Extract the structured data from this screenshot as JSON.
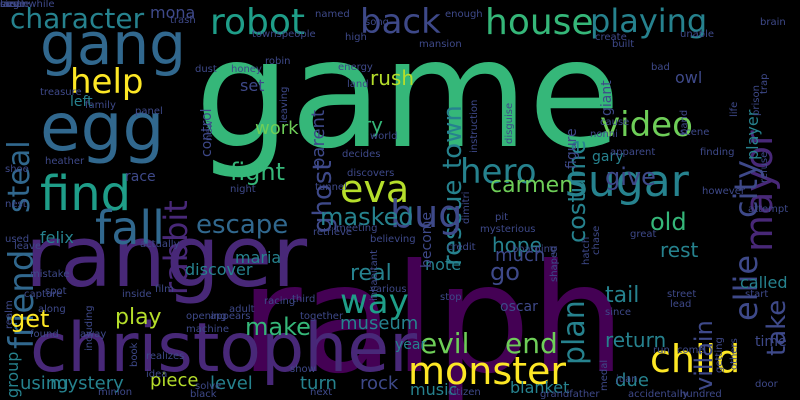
{
  "colors": {
    "background": "#000000",
    "palette": [
      "#440154",
      "#482878",
      "#3e4989",
      "#31688e",
      "#26828e",
      "#1f9e89",
      "#35b779",
      "#6ece58",
      "#b5de2b",
      "#fde725"
    ]
  },
  "words": [
    {
      "text": "game",
      "color": "#35b779"
    },
    {
      "text": "ralph",
      "color": "#440154"
    },
    {
      "text": "ranger",
      "color": "#482878"
    },
    {
      "text": "christopher",
      "color": "#482878"
    },
    {
      "text": "gang",
      "color": "#31688e"
    },
    {
      "text": "egg",
      "color": "#31688e"
    },
    {
      "text": "find",
      "color": "#1f9e89"
    },
    {
      "text": "fall",
      "color": "#31688e"
    },
    {
      "text": "friend",
      "color": "#31688e"
    },
    {
      "text": "steal",
      "color": "#31688e"
    },
    {
      "text": "help",
      "color": "#fde725"
    },
    {
      "text": "robot",
      "color": "#1f9e89"
    },
    {
      "text": "back",
      "color": "#3e4989"
    },
    {
      "text": "house",
      "color": "#35b779"
    },
    {
      "text": "playing",
      "color": "#26828e"
    },
    {
      "text": "character",
      "color": "#26828e"
    },
    {
      "text": "mona",
      "color": "#3e4989"
    },
    {
      "text": "mayor",
      "color": "#482878"
    },
    {
      "text": "ellie",
      "color": "#3e4989"
    },
    {
      "text": "city",
      "color": "#3e4989"
    },
    {
      "text": "sugar",
      "color": "#26828e"
    },
    {
      "text": "eva",
      "color": "#b5de2b"
    },
    {
      "text": "rabbit",
      "color": "#482878"
    },
    {
      "text": "ghost",
      "color": "#3e4989"
    },
    {
      "text": "rescue",
      "color": "#26828e"
    },
    {
      "text": "town",
      "color": "#26828e"
    },
    {
      "text": "video",
      "color": "#6ece58"
    },
    {
      "text": "costume",
      "color": "#26828e"
    },
    {
      "text": "bug",
      "color": "#3e4989"
    },
    {
      "text": "hero",
      "color": "#26828e"
    },
    {
      "text": "carmen",
      "color": "#6ece58"
    },
    {
      "text": "plan",
      "color": "#26828e"
    },
    {
      "text": "give",
      "color": "#3e4989"
    },
    {
      "text": "masked",
      "color": "#26828e"
    },
    {
      "text": "escape",
      "color": "#31688e"
    },
    {
      "text": "fight",
      "color": "#35b779"
    },
    {
      "text": "work",
      "color": "#6ece58"
    },
    {
      "text": "try",
      "color": "#35b779"
    },
    {
      "text": "rush",
      "color": "#b5de2b"
    },
    {
      "text": "set",
      "color": "#3e4989"
    },
    {
      "text": "parent",
      "color": "#3e4989"
    },
    {
      "text": "way",
      "color": "#1f9e89"
    },
    {
      "text": "real",
      "color": "#26828e"
    },
    {
      "text": "go",
      "color": "#3e4989"
    },
    {
      "text": "monster",
      "color": "#fde725"
    },
    {
      "text": "child",
      "color": "#fde725"
    },
    {
      "text": "evil",
      "color": "#6ece58"
    },
    {
      "text": "end",
      "color": "#6ece58"
    },
    {
      "text": "make",
      "color": "#35b779"
    },
    {
      "text": "museum",
      "color": "#26828e"
    },
    {
      "text": "get",
      "color": "#fde725"
    },
    {
      "text": "play",
      "color": "#b5de2b"
    },
    {
      "text": "felix",
      "color": "#26828e"
    },
    {
      "text": "discover",
      "color": "#26828e"
    },
    {
      "text": "maria",
      "color": "#26828e"
    },
    {
      "text": "old",
      "color": "#35b779"
    },
    {
      "text": "rest",
      "color": "#26828e"
    },
    {
      "text": "hope",
      "color": "#26828e"
    },
    {
      "text": "take",
      "color": "#3e4989"
    },
    {
      "text": "villain",
      "color": "#3e4989"
    },
    {
      "text": "tail",
      "color": "#26828e"
    },
    {
      "text": "note",
      "color": "#26828e"
    },
    {
      "text": "much",
      "color": "#3e4989"
    },
    {
      "text": "return",
      "color": "#26828e"
    },
    {
      "text": "mystery",
      "color": "#26828e"
    },
    {
      "text": "piece",
      "color": "#b5de2b"
    },
    {
      "text": "level",
      "color": "#26828e"
    },
    {
      "text": "turn",
      "color": "#26828e"
    },
    {
      "text": "rock",
      "color": "#3e4989"
    },
    {
      "text": "music",
      "color": "#26828e"
    },
    {
      "text": "blanket",
      "color": "#26828e"
    },
    {
      "text": "due",
      "color": "#26828e"
    },
    {
      "text": "using",
      "color": "#26828e"
    },
    {
      "text": "group",
      "color": "#26828e"
    },
    {
      "text": "called",
      "color": "#26828e"
    },
    {
      "text": "gary",
      "color": "#26828e"
    },
    {
      "text": "owl",
      "color": "#3e4989"
    },
    {
      "text": "player",
      "color": "#26828e"
    },
    {
      "text": "left",
      "color": "#26828e"
    },
    {
      "text": "control",
      "color": "#3e4989"
    },
    {
      "text": "become",
      "color": "#3e4989"
    },
    {
      "text": "figure",
      "color": "#3e4989"
    },
    {
      "text": "giant",
      "color": "#3e4989"
    },
    {
      "text": "oscar",
      "color": "#3e4989"
    },
    {
      "text": "year",
      "color": "#26828e"
    },
    {
      "text": "time",
      "color": "#3e4989"
    },
    {
      "text": "race",
      "color": "#3e4989"
    },
    {
      "text": "trash",
      "color": "#3e4989"
    },
    {
      "text": "dust",
      "color": "#3e4989"
    },
    {
      "text": "named",
      "color": "#3e4989"
    },
    {
      "text": "robin",
      "color": "#3e4989"
    },
    {
      "text": "high",
      "color": "#3e4989"
    },
    {
      "text": "enough",
      "color": "#3e4989"
    },
    {
      "text": "create",
      "color": "#3e4989"
    },
    {
      "text": "built",
      "color": "#3e4989"
    },
    {
      "text": "unable",
      "color": "#3e4989"
    },
    {
      "text": "brain",
      "color": "#3e4989"
    },
    {
      "text": "bad",
      "color": "#3e4989"
    },
    {
      "text": "energy",
      "color": "#3e4989"
    },
    {
      "text": "land",
      "color": "#3e4989"
    },
    {
      "text": "honey",
      "color": "#3e4989"
    },
    {
      "text": "leaving",
      "color": "#3e4989"
    },
    {
      "text": "world",
      "color": "#3e4989"
    },
    {
      "text": "instruction",
      "color": "#3e4989"
    },
    {
      "text": "disguise",
      "color": "#3e4989"
    },
    {
      "text": "nonni",
      "color": "#3e4989"
    },
    {
      "text": "cause",
      "color": "#3e4989"
    },
    {
      "text": "scene",
      "color": "#3e4989"
    },
    {
      "text": "band",
      "color": "#3e4989"
    },
    {
      "text": "life",
      "color": "#3e4989"
    },
    {
      "text": "prison",
      "color": "#3e4989"
    },
    {
      "text": "trap",
      "color": "#3e4989"
    },
    {
      "text": "refuse",
      "color": "#3e4989"
    },
    {
      "text": "finding",
      "color": "#3e4989"
    },
    {
      "text": "however",
      "color": "#3e4989"
    },
    {
      "text": "attempt",
      "color": "#3e4989"
    },
    {
      "text": "panel",
      "color": "#3e4989"
    },
    {
      "text": "family",
      "color": "#3e4989"
    },
    {
      "text": "treasure",
      "color": "#3e4989"
    },
    {
      "text": "shoe",
      "color": "#3e4989"
    },
    {
      "text": "heather",
      "color": "#3e4989"
    },
    {
      "text": "nest",
      "color": "#3e4989"
    },
    {
      "text": "used",
      "color": "#3e4989"
    },
    {
      "text": "actually",
      "color": "#3e4989"
    },
    {
      "text": "leave",
      "color": "#3e4989"
    },
    {
      "text": "night",
      "color": "#3e4989"
    },
    {
      "text": "tunnel",
      "color": "#3e4989"
    },
    {
      "text": "decides",
      "color": "#3e4989"
    },
    {
      "text": "discovers",
      "color": "#3e4989"
    },
    {
      "text": "dimitri",
      "color": "#3e4989"
    },
    {
      "text": "pit",
      "color": "#3e4989"
    },
    {
      "text": "credit",
      "color": "#3e4989"
    },
    {
      "text": "mysterious",
      "color": "#3e4989"
    },
    {
      "text": "boarding",
      "color": "#3e4989"
    },
    {
      "text": "shaped",
      "color": "#3e4989"
    },
    {
      "text": "chase",
      "color": "#3e4989"
    },
    {
      "text": "hatch",
      "color": "#3e4989"
    },
    {
      "text": "great",
      "color": "#3e4989"
    },
    {
      "text": "retrieve",
      "color": "#3e4989"
    },
    {
      "text": "meeting",
      "color": "#3e4989"
    },
    {
      "text": "believing",
      "color": "#3e4989"
    },
    {
      "text": "inhabitant",
      "color": "#3e4989"
    },
    {
      "text": "various",
      "color": "#3e4989"
    },
    {
      "text": "mistake",
      "color": "#3e4989"
    },
    {
      "text": "spot",
      "color": "#3e4989"
    },
    {
      "text": "capture",
      "color": "#3e4989"
    },
    {
      "text": "including",
      "color": "#3e4989"
    },
    {
      "text": "inside",
      "color": "#3e4989"
    },
    {
      "text": "film",
      "color": "#3e4989"
    },
    {
      "text": "third",
      "color": "#3e4989"
    },
    {
      "text": "together",
      "color": "#3e4989"
    },
    {
      "text": "racing",
      "color": "#3e4989"
    },
    {
      "text": "along",
      "color": "#3e4989"
    },
    {
      "text": "found",
      "color": "#3e4989"
    },
    {
      "text": "away",
      "color": "#3e4989"
    },
    {
      "text": "book",
      "color": "#3e4989"
    },
    {
      "text": "machine",
      "color": "#3e4989"
    },
    {
      "text": "adult",
      "color": "#3e4989"
    },
    {
      "text": "opening",
      "color": "#3e4989"
    },
    {
      "text": "appears",
      "color": "#3e4989"
    },
    {
      "text": "realizes",
      "color": "#3e4989"
    },
    {
      "text": "idea",
      "color": "#3e4989"
    },
    {
      "text": "minion",
      "color": "#3e4989"
    },
    {
      "text": "black",
      "color": "#3e4989"
    },
    {
      "text": "stop",
      "color": "#3e4989"
    },
    {
      "text": "juan",
      "color": "#3e4989"
    },
    {
      "text": "since",
      "color": "#3e4989"
    },
    {
      "text": "street",
      "color": "#3e4989"
    },
    {
      "text": "lead",
      "color": "#3e4989"
    },
    {
      "text": "medal",
      "color": "#3e4989"
    },
    {
      "text": "run",
      "color": "#3e4989"
    },
    {
      "text": "come",
      "color": "#3e4989"
    },
    {
      "text": "start",
      "color": "#3e4989"
    },
    {
      "text": "getting",
      "color": "#3e4989"
    },
    {
      "text": "others",
      "color": "#3e4989"
    },
    {
      "text": "door",
      "color": "#3e4989"
    },
    {
      "text": "next",
      "color": "#3e4989"
    },
    {
      "text": "grandfather",
      "color": "#3e4989"
    },
    {
      "text": "accidentally",
      "color": "#3e4989"
    },
    {
      "text": "hundred",
      "color": "#3e4989"
    },
    {
      "text": "citizen",
      "color": "#3e4989"
    },
    {
      "text": "solve",
      "color": "#3e4989"
    },
    {
      "text": "realm",
      "color": "#3e4989"
    },
    {
      "text": "townspeople",
      "color": "#3e4989"
    },
    {
      "text": "song",
      "color": "#3e4989"
    },
    {
      "text": "mansion",
      "color": "#3e4989"
    },
    {
      "text": "apparent",
      "color": "#3e4989"
    },
    {
      "text": "show",
      "color": "#3e4989"
    },
    {
      "text": "new",
      "color": "#3e4989"
    },
    {
      "text": "size",
      "color": "#3e4989"
    },
    {
      "text": "large",
      "color": "#3e4989"
    },
    {
      "text": "meanwhile",
      "color": "#3e4989"
    },
    {
      "text": "castle",
      "color": "#3e4989"
    }
  ]
}
